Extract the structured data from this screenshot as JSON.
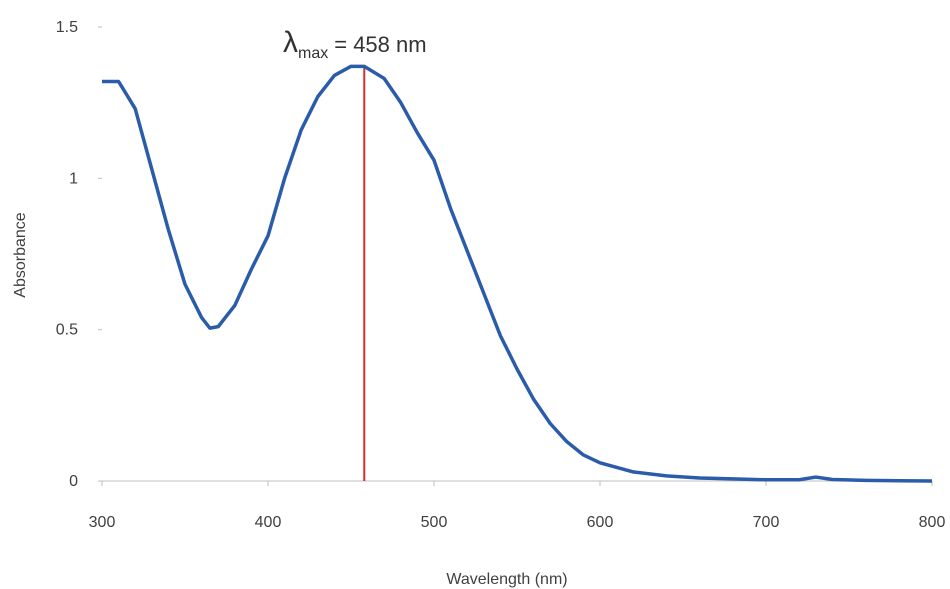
{
  "chart_data": {
    "type": "line",
    "x_label": "Wavelength (nm)",
    "y_label": "Absorbance",
    "x": [
      300,
      310,
      320,
      330,
      340,
      350,
      360,
      365,
      370,
      380,
      390,
      400,
      410,
      420,
      430,
      440,
      450,
      458,
      470,
      480,
      490,
      500,
      510,
      520,
      530,
      540,
      550,
      560,
      570,
      580,
      590,
      600,
      620,
      640,
      660,
      680,
      700,
      720,
      730,
      740,
      760,
      780,
      800
    ],
    "values": [
      1.32,
      1.32,
      1.23,
      1.03,
      0.83,
      0.65,
      0.54,
      0.505,
      0.51,
      0.58,
      0.7,
      0.81,
      1.0,
      1.16,
      1.27,
      1.34,
      1.37,
      1.37,
      1.33,
      1.25,
      1.15,
      1.06,
      0.9,
      0.76,
      0.62,
      0.48,
      0.37,
      0.27,
      0.19,
      0.13,
      0.086,
      0.06,
      0.03,
      0.017,
      0.01,
      0.007,
      0.004,
      0.004,
      0.013,
      0.005,
      0.002,
      0.001,
      0
    ],
    "color": "#2a5caa",
    "xlim": [
      300,
      800
    ],
    "xticks": [
      300,
      400,
      500,
      600,
      700,
      800
    ],
    "ylim": [
      0,
      1.5
    ],
    "yticks": [
      0,
      0.5,
      1,
      1.5
    ],
    "grid": false,
    "annotation": {
      "symbol": "λ",
      "subscript": "max",
      "text": "= 458 nm",
      "x": 458,
      "color": "#d0312d"
    }
  }
}
